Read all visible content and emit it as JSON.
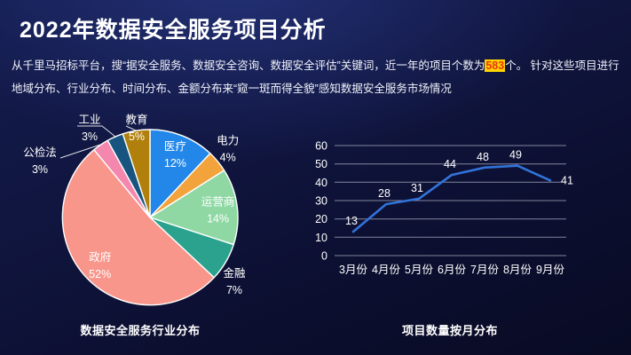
{
  "slide": {
    "title": "2022年数据安全服务项目分析",
    "intro": {
      "part1": "从千里马招标平台，搜“据安全服务、数据安全咨询、数据安全评估”关键词，近一年的项目个数为",
      "highlight": "583",
      "part2": "个。 针对这些项目进行地域分布、行业分布、时间分布、金额分布来“窥一斑而得全貌”感知数据安全服务市场情况"
    }
  },
  "chart_data": [
    {
      "type": "pie",
      "title": "数据安全服务行业分布",
      "categories": [
        "医疗",
        "电力",
        "运营商",
        "金融",
        "政府",
        "公检法",
        "工业",
        "教育"
      ],
      "values": [
        12,
        4,
        14,
        7,
        52,
        3,
        3,
        5
      ],
      "unit": "%",
      "colors": [
        "#2287e8",
        "#f2a33c",
        "#8fd8a4",
        "#2ba28d",
        "#f8968b",
        "#f487ae",
        "#17547f",
        "#b07f0c"
      ],
      "start_angle": "12 o'clock, clockwise",
      "label_format": "name above percent, white text, small slices labeled outside with leader lines",
      "legend": "none"
    },
    {
      "type": "line",
      "title": "项目数量按月分布",
      "categories": [
        "3月份",
        "4月份",
        "5月份",
        "6月份",
        "7月份",
        "8月份",
        "9月份"
      ],
      "values": [
        13,
        28,
        31,
        44,
        48,
        49,
        41
      ],
      "ylim": [
        0,
        60
      ],
      "yticks": [
        0,
        10,
        20,
        30,
        40,
        50,
        60
      ],
      "grid": "horizontal",
      "line_color": "#3273d9",
      "data_labels": true,
      "legend": "none"
    }
  ],
  "colors": {
    "background_top": "#141c4e",
    "background_bottom": "#090b24",
    "title_text": "#ffffff",
    "body_text": "#f0f2fa",
    "highlight_bg": "#ffd400",
    "highlight_text": "#e8380d",
    "gridline": "#d7deea",
    "pie_slice_border": "#ffffff"
  }
}
